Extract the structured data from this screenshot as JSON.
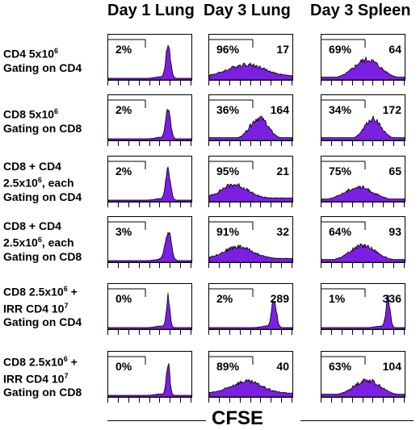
{
  "colors": {
    "fill": "#7B1FE0",
    "stroke": "#000000"
  },
  "column_headers": [
    "Day 1 Lung",
    "Day 3 Lung",
    "Day 3 Spleen"
  ],
  "rows": [
    {
      "line1": "CD4 5x10",
      "sup1": "6",
      "line1_tail": "",
      "line2": "Gating on CD4",
      "line3": "",
      "cells": [
        {
          "pct": "2%",
          "num": ""
        },
        {
          "pct": "96%",
          "num": "17"
        },
        {
          "pct": "69%",
          "num": "64"
        }
      ]
    },
    {
      "line1": "CD8 5x10",
      "sup1": "6",
      "line1_tail": "",
      "line2": "Gating on CD8",
      "line3": "",
      "cells": [
        {
          "pct": "2%",
          "num": ""
        },
        {
          "pct": "36%",
          "num": "164"
        },
        {
          "pct": "34%",
          "num": "172"
        }
      ]
    },
    {
      "line1": "CD8 + CD4",
      "sup1": "",
      "line1_tail": "",
      "line2": "2.5x10",
      "line2_sup": "6",
      "line2_tail": ", each",
      "line3": "Gating on CD4",
      "cells": [
        {
          "pct": "2%",
          "num": ""
        },
        {
          "pct": "95%",
          "num": "21"
        },
        {
          "pct": "75%",
          "num": "65"
        }
      ]
    },
    {
      "line1": "CD8 + CD4",
      "sup1": "",
      "line1_tail": "",
      "line2": "2.5x10",
      "line2_sup": "6",
      "line2_tail": ", each",
      "line3": "Gating on CD8",
      "cells": [
        {
          "pct": "3%",
          "num": ""
        },
        {
          "pct": "91%",
          "num": "32"
        },
        {
          "pct": "64%",
          "num": "93"
        }
      ]
    },
    {
      "line1": "CD8 2.5x10",
      "sup1": "6",
      "line1_tail": " +",
      "line2": "IRR CD4 10",
      "line2_sup": "7",
      "line2_tail": "",
      "line3": "Gating on CD4",
      "cells": [
        {
          "pct": "0%",
          "num": ""
        },
        {
          "pct": "2%",
          "num": "289"
        },
        {
          "pct": "1%",
          "num": "336"
        }
      ]
    },
    {
      "line1": "CD8 2.5x10",
      "sup1": "6",
      "line1_tail": " +",
      "line2": "IRR CD4 10",
      "line2_sup": "7",
      "line2_tail": "",
      "line3": "Gating on CD8",
      "cells": [
        {
          "pct": "0%",
          "num": ""
        },
        {
          "pct": "89%",
          "num": "40"
        },
        {
          "pct": "63%",
          "num": "104"
        }
      ]
    }
  ],
  "x_axis_label": "CFSE"
}
